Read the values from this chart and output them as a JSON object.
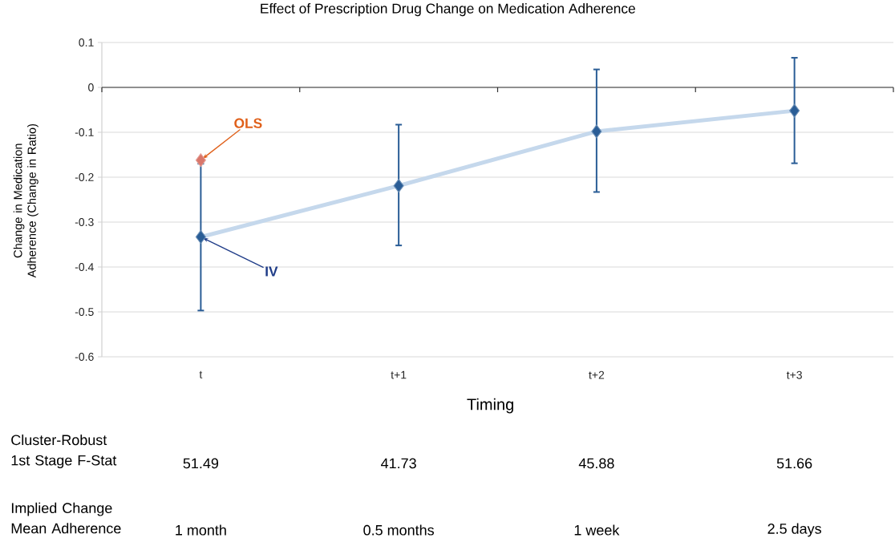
{
  "chart_data": {
    "type": "line",
    "title": "Effect of Prescription Drug Change on Medication Adherence",
    "xlabel": "Timing",
    "ylabel": "Change in Medication Adherence (Change in Ratio)",
    "categories": [
      "t",
      "t+1",
      "t+2",
      "t+3"
    ],
    "series": [
      {
        "color": "#c5d8ec",
        "marker": "none",
        "values": [
          -0.333,
          -0.219,
          -0.098,
          -0.052
        ]
      },
      {
        "type": "scatter",
        "color": "#2a5d96",
        "marker": "diamond",
        "values": [
          -0.333,
          -0.219,
          -0.098,
          -0.052
        ],
        "errors": [
          [
            -0.497,
            -0.17
          ],
          [
            -0.352,
            -0.083
          ],
          [
            -0.233,
            0.04
          ],
          [
            -0.169,
            0.066
          ]
        ]
      },
      {
        "type": "scatter",
        "color": "#d9776b",
        "marker": "diamond",
        "values": [
          -0.162,
          null,
          null,
          null
        ]
      }
    ],
    "ylim": [
      -0.6,
      0.1
    ],
    "yticks": [
      -0.6,
      -0.5,
      -0.4,
      -0.3,
      -0.2,
      -0.1,
      0,
      0.1
    ],
    "grid": "y",
    "annotations": [
      {
        "text": "OLS",
        "x": "t",
        "y": -0.162
      },
      {
        "text": "IV",
        "x": "t",
        "y": -0.333
      },
      "Cluster-Robust 1st Stage F-Stat",
      "51.49",
      "41.73",
      "45.88",
      "51.66",
      "Implied Change Mean Adherence",
      "1 month",
      "0.5 months",
      "1 week",
      "2.5 days"
    ]
  }
}
